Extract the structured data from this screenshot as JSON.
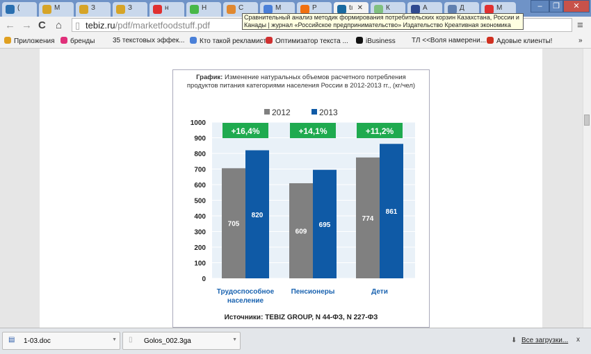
{
  "tabs": [
    {
      "label": "(",
      "color": "#2a6fb0"
    },
    {
      "label": "М",
      "color": "#d6a428"
    },
    {
      "label": "З",
      "color": "#d6a428"
    },
    {
      "label": "З",
      "color": "#d6a428"
    },
    {
      "label": "н",
      "color": "#e03030"
    },
    {
      "label": "Н",
      "color": "#48b848"
    },
    {
      "label": "С",
      "color": "#e08830"
    },
    {
      "label": "М",
      "color": "#4a80d8"
    },
    {
      "label": "Р",
      "color": "#f07010"
    },
    {
      "label": "tı",
      "color": "#1a6aa0"
    },
    {
      "label": "К",
      "color": "#80c080"
    },
    {
      "label": "А",
      "color": "#304a90"
    },
    {
      "label": "Д",
      "color": "#6080b0"
    },
    {
      "label": "М",
      "color": "#e03030"
    }
  ],
  "address": {
    "host": "tebiz.ru",
    "path": "/pdf/marketfoodstuff.pdf"
  },
  "tooltip": "Сравнительный анализ методик формирования потребительских корзин Казахстана, России и Канады | журнал «Российское предпринимательство» Издательство Креативная экономика",
  "bookmarks": [
    "Приложения",
    "бренды",
    "35 текстовых эффек...",
    "Кто такой рекламист",
    "Оптимизатор текста ...",
    "iBusiness",
    "ТЛ <<Воля намерени...",
    "Адовые клиенты!"
  ],
  "bookmarks_more": "»",
  "chart_data": {
    "type": "bar",
    "title_bold": "График:",
    "title": "Изменение натуральных объемов расчетного потребления продуктов питания категориями населения России в 2012-2013 гг., (кг/чел)",
    "categories": [
      "Трудоспособное население",
      "Пенсионеры",
      "Дети"
    ],
    "series": [
      {
        "name": "2012",
        "color": "#808080",
        "values": [
          705,
          609,
          774
        ]
      },
      {
        "name": "2013",
        "color": "#0f5aa6",
        "values": [
          820,
          695,
          861
        ]
      }
    ],
    "changes": [
      "+16,4%",
      "+14,1%",
      "+11,2%"
    ],
    "change_color": "#1faa4f",
    "ylim": [
      0,
      1000
    ],
    "yticks": [
      0,
      100,
      200,
      300,
      400,
      500,
      600,
      700,
      800,
      900,
      1000
    ],
    "legend": "top",
    "source": "Источники: TEBIZ GROUP, N 44-ФЗ, N 227-ФЗ"
  },
  "downloads": {
    "items": [
      "1-03.doc",
      "Golos_002.3ga"
    ],
    "all": "Все загрузки...",
    "close": "x"
  }
}
